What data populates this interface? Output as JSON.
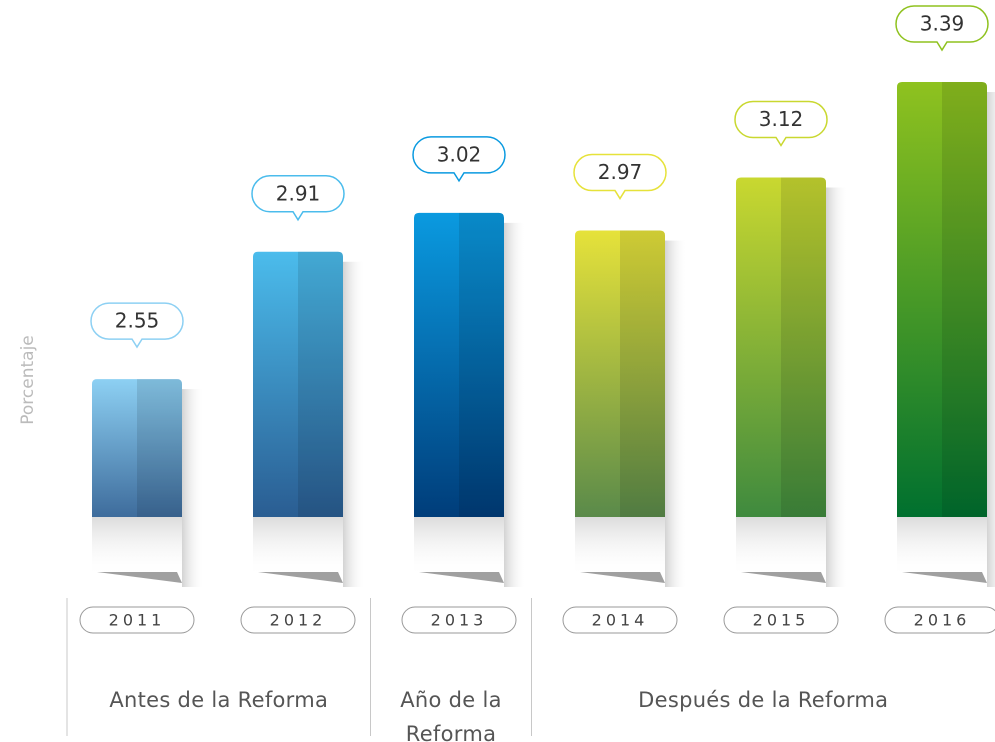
{
  "chart_data": {
    "type": "bar",
    "y_label": "Porcentaje",
    "categories": [
      "2011",
      "2012",
      "2013",
      "2014",
      "2015",
      "2016"
    ],
    "values": [
      2.55,
      2.91,
      3.02,
      2.97,
      3.12,
      3.39
    ],
    "colors": [
      [
        "#8dd0f3",
        "#3e6c9c"
      ],
      [
        "#4bbcec",
        "#2a5d92"
      ],
      [
        "#0a9ae0",
        "#003d7a"
      ],
      [
        "#e6e23a",
        "#5a8a4a"
      ],
      [
        "#c9d830",
        "#3f8a3e"
      ],
      [
        "#8fc21f",
        "#00702f"
      ]
    ],
    "ylim": [
      2.16,
      3.4
    ],
    "groups": [
      {
        "label": "Antes de la Reforma",
        "categories": [
          "2011",
          "2012"
        ]
      },
      {
        "label": "Año de la Reforma",
        "categories": [
          "2013"
        ]
      },
      {
        "label": "Después de la Reforma",
        "categories": [
          "2014",
          "2015",
          "2016"
        ]
      }
    ]
  }
}
